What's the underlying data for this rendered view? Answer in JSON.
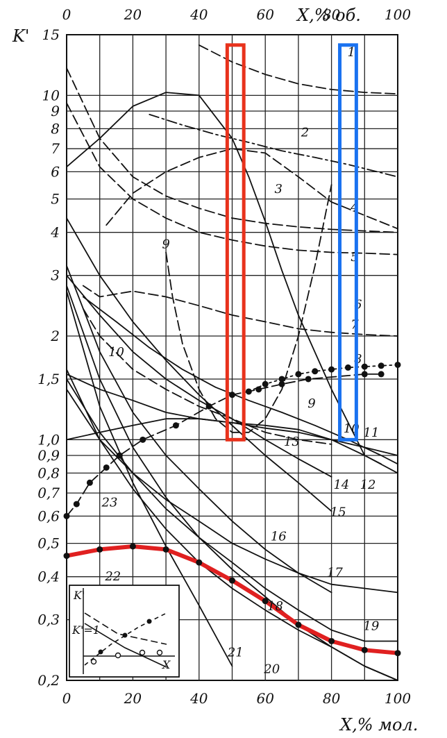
{
  "chart_data": {
    "type": "line",
    "y_axis_label": "K'",
    "x_bottom_label": "X,% мол.",
    "x_top_label": "X,% об.",
    "y_scale": "log",
    "ylim": [
      0.2,
      15
    ],
    "xlim": [
      0,
      100
    ],
    "grid": true,
    "x_bottom_ticks": [
      "0",
      "20",
      "40",
      "60",
      "80",
      "100"
    ],
    "x_top_ticks": [
      "0",
      "20",
      "40",
      "60",
      "80",
      "100"
    ],
    "y_ticks": [
      {
        "value": 15,
        "label": "15"
      },
      {
        "value": 10,
        "label": "10"
      },
      {
        "value": 9,
        "label": "9"
      },
      {
        "value": 8,
        "label": "8"
      },
      {
        "value": 7,
        "label": "7"
      },
      {
        "value": 6,
        "label": "6"
      },
      {
        "value": 5,
        "label": "5"
      },
      {
        "value": 4,
        "label": "4"
      },
      {
        "value": 3,
        "label": "3"
      },
      {
        "value": 2,
        "label": "2"
      },
      {
        "value": 1.5,
        "label": "1,5"
      },
      {
        "value": 1.0,
        "label": "1,0"
      },
      {
        "value": 0.9,
        "label": "0,9"
      },
      {
        "value": 0.8,
        "label": "0,8"
      },
      {
        "value": 0.7,
        "label": "0,7"
      },
      {
        "value": 0.6,
        "label": "0,6"
      },
      {
        "value": 0.5,
        "label": "0,5"
      },
      {
        "value": 0.4,
        "label": "0,4"
      },
      {
        "value": 0.3,
        "label": "0,3"
      },
      {
        "value": 0.2,
        "label": "0,2"
      }
    ],
    "series": [
      {
        "name": "1",
        "style": "dash",
        "x": [
          40,
          50,
          60,
          70,
          80,
          90,
          100
        ],
        "y": [
          14,
          12.5,
          11.5,
          10.8,
          10.4,
          10.2,
          10.1
        ]
      },
      {
        "name": "2",
        "style": "dashdot",
        "x": [
          25,
          35,
          45,
          55,
          65,
          75,
          85,
          100
        ],
        "y": [
          8.8,
          8.2,
          7.7,
          7.3,
          6.9,
          6.6,
          6.3,
          5.8
        ]
      },
      {
        "name": "3",
        "style": "dash",
        "x": [
          12,
          20,
          30,
          40,
          50,
          60,
          70,
          80,
          100
        ],
        "y": [
          4.2,
          5.2,
          6.0,
          6.6,
          7.0,
          6.8,
          5.8,
          4.9,
          4.1
        ]
      },
      {
        "name": "4",
        "style": "dash",
        "x": [
          0,
          10,
          20,
          30,
          40,
          50,
          60,
          70,
          80,
          90,
          100
        ],
        "y": [
          12,
          7.5,
          5.8,
          5.1,
          4.7,
          4.4,
          4.25,
          4.15,
          4.08,
          4.04,
          4.0
        ]
      },
      {
        "name": "5",
        "style": "dash",
        "x": [
          0,
          10,
          20,
          30,
          40,
          50,
          60,
          70,
          80,
          90,
          100
        ],
        "y": [
          9.5,
          6.2,
          5.0,
          4.4,
          4.0,
          3.8,
          3.65,
          3.55,
          3.5,
          3.48,
          3.45
        ]
      },
      {
        "name": "6",
        "style": "dash",
        "x": [
          5,
          10,
          20,
          30,
          40,
          50,
          60,
          70,
          80,
          90,
          100
        ],
        "y": [
          2.8,
          2.6,
          2.7,
          2.6,
          2.45,
          2.3,
          2.2,
          2.1,
          2.05,
          2.02,
          2.0
        ]
      },
      {
        "name": "7",
        "style": "solid",
        "x": [
          0,
          10,
          20,
          30,
          40,
          50,
          55,
          60,
          65,
          70,
          80,
          90,
          100
        ],
        "y": [
          6.2,
          7.5,
          9.3,
          10.2,
          10.0,
          7.5,
          5.8,
          4.3,
          3.1,
          2.3,
          1.4,
          0.9,
          0.8
        ]
      },
      {
        "name": "8",
        "style": "dot",
        "x": [
          55,
          60,
          65,
          70,
          75,
          80,
          85,
          90,
          95,
          100
        ],
        "y": [
          1.38,
          1.45,
          1.5,
          1.55,
          1.58,
          1.6,
          1.62,
          1.63,
          1.64,
          1.65
        ]
      },
      {
        "name": "9",
        "style": "dash",
        "x": [
          30,
          32,
          35,
          40,
          45,
          50,
          55,
          60,
          65,
          70,
          75,
          80
        ],
        "y": [
          3.5,
          2.6,
          1.9,
          1.4,
          1.15,
          1.05,
          1.05,
          1.15,
          1.4,
          2.0,
          3.2,
          5.5
        ]
      },
      {
        "name": "10",
        "style": "dash",
        "x": [
          5,
          10,
          20,
          30,
          40,
          50,
          60,
          70,
          80
        ],
        "y": [
          2.4,
          2.0,
          1.6,
          1.4,
          1.25,
          1.15,
          1.05,
          1.0,
          0.97
        ]
      },
      {
        "name": "11",
        "style": "solid",
        "x": [
          0,
          10,
          20,
          30,
          40,
          50,
          60,
          70,
          80,
          90,
          95
        ],
        "y": [
          1.55,
          1.4,
          1.3,
          1.2,
          1.15,
          1.12,
          1.1,
          1.07,
          1.0,
          0.9,
          0.85
        ]
      },
      {
        "name": "12",
        "style": "solid",
        "x": [
          5,
          15,
          25,
          35,
          45,
          55,
          65,
          75,
          85,
          95,
          100
        ],
        "y": [
          2.6,
          2.2,
          1.85,
          1.6,
          1.42,
          1.3,
          1.2,
          1.1,
          1.0,
          0.9,
          0.85
        ]
      },
      {
        "name": "13",
        "style": "solid",
        "x": [
          0,
          10,
          20,
          30,
          40,
          50,
          60,
          70,
          80,
          90,
          100
        ],
        "y": [
          1.0,
          1.05,
          1.1,
          1.15,
          1.15,
          1.12,
          1.08,
          1.05,
          1.0,
          0.95,
          0.9
        ]
      },
      {
        "name": "14",
        "style": "solid",
        "x": [
          0,
          10,
          20,
          30,
          40,
          50,
          60,
          70,
          80
        ],
        "y": [
          3.0,
          2.3,
          1.8,
          1.5,
          1.3,
          1.15,
          1.0,
          0.88,
          0.78
        ]
      },
      {
        "name": "15",
        "style": "solid",
        "x": [
          0,
          10,
          20,
          30,
          40,
          50,
          60,
          70,
          80
        ],
        "y": [
          4.4,
          3.0,
          2.2,
          1.7,
          1.35,
          1.1,
          0.9,
          0.75,
          0.62
        ]
      },
      {
        "name": "16",
        "style": "solid",
        "x": [
          0,
          10,
          20,
          30,
          40,
          50,
          60,
          70,
          80,
          90,
          100
        ],
        "y": [
          1.4,
          1.0,
          0.8,
          0.67,
          0.58,
          0.5,
          0.45,
          0.41,
          0.38,
          0.37,
          0.36
        ]
      },
      {
        "name": "17",
        "style": "solid",
        "x": [
          0,
          10,
          20,
          30,
          40,
          50,
          60,
          70,
          80
        ],
        "y": [
          3.2,
          1.8,
          1.2,
          0.9,
          0.72,
          0.58,
          0.48,
          0.41,
          0.36
        ]
      },
      {
        "name": "18",
        "style": "solid",
        "x": [
          0,
          10,
          20,
          30,
          40,
          50,
          60,
          70,
          80,
          90,
          100
        ],
        "y": [
          1.5,
          1.05,
          0.8,
          0.63,
          0.52,
          0.44,
          0.37,
          0.32,
          0.28,
          0.26,
          0.26
        ]
      },
      {
        "name": "19",
        "style": "solid",
        "x": [
          0,
          10,
          20,
          30,
          40,
          50,
          60,
          70,
          80,
          90,
          100
        ],
        "y": [
          1.6,
          1.0,
          0.72,
          0.55,
          0.44,
          0.37,
          0.32,
          0.28,
          0.25,
          0.22,
          0.2
        ]
      },
      {
        "name": "20",
        "style": "solid",
        "x": [
          0,
          10,
          20,
          30,
          40,
          50,
          60,
          70,
          80,
          90,
          100
        ],
        "y": [
          2.8,
          1.5,
          0.95,
          0.68,
          0.52,
          0.42,
          0.35,
          0.29,
          0.25,
          0.22,
          0.2
        ]
      },
      {
        "name": "21",
        "style": "solid",
        "x": [
          0,
          10,
          20,
          30,
          40,
          50
        ],
        "y": [
          2.7,
          1.25,
          0.75,
          0.49,
          0.33,
          0.22
        ]
      },
      {
        "name": "22",
        "style": "solid",
        "color": "#e02020",
        "markers": true,
        "x": [
          0,
          10,
          20,
          30,
          40,
          50,
          60,
          70,
          80,
          90,
          100
        ],
        "y": [
          0.46,
          0.48,
          0.49,
          0.48,
          0.44,
          0.39,
          0.34,
          0.29,
          0.26,
          0.245,
          0.24
        ]
      },
      {
        "name": "23",
        "style": "dash",
        "markers": true,
        "x": [
          0,
          3,
          7,
          12,
          16,
          23,
          33,
          43,
          50,
          58,
          65,
          73,
          90,
          95
        ],
        "y": [
          0.6,
          0.65,
          0.75,
          0.83,
          0.9,
          1.0,
          1.1,
          1.25,
          1.35,
          1.4,
          1.45,
          1.5,
          1.55,
          1.55
        ]
      }
    ],
    "labels": [
      {
        "text": "1",
        "x": 86,
        "y": 13
      },
      {
        "text": "2",
        "x": 72,
        "y": 7.6
      },
      {
        "text": "3",
        "x": 64,
        "y": 5.2
      },
      {
        "text": "4",
        "x": 87,
        "y": 4.6
      },
      {
        "text": "5",
        "x": 87,
        "y": 3.3
      },
      {
        "text": "6",
        "x": 88,
        "y": 2.4
      },
      {
        "text": "7",
        "x": 87,
        "y": 2.1
      },
      {
        "text": "8",
        "x": 88,
        "y": 1.67
      },
      {
        "text": "9",
        "x": 30,
        "y": 3.6
      },
      {
        "text": "9",
        "x": 74,
        "y": 1.24
      },
      {
        "text": "10",
        "x": 15,
        "y": 1.75
      },
      {
        "text": "10",
        "x": 86,
        "y": 1.05
      },
      {
        "text": "11",
        "x": 92,
        "y": 1.02
      },
      {
        "text": "12",
        "x": 91,
        "y": 0.72
      },
      {
        "text": "13",
        "x": 68,
        "y": 0.96
      },
      {
        "text": "14",
        "x": 83,
        "y": 0.72
      },
      {
        "text": "15",
        "x": 82,
        "y": 0.6
      },
      {
        "text": "16",
        "x": 64,
        "y": 0.51
      },
      {
        "text": "17",
        "x": 81,
        "y": 0.4
      },
      {
        "text": "18",
        "x": 63,
        "y": 0.32
      },
      {
        "text": "19",
        "x": 92,
        "y": 0.28
      },
      {
        "text": "20",
        "x": 62,
        "y": 0.21
      },
      {
        "text": "21",
        "x": 51,
        "y": 0.235
      },
      {
        "text": "22",
        "x": 14,
        "y": 0.39
      },
      {
        "text": "23",
        "x": 13,
        "y": 0.64
      }
    ],
    "highlights": [
      {
        "color": "#e8321c",
        "x_range": [
          48.5,
          53.5
        ],
        "y_range": [
          1.0,
          14
        ]
      },
      {
        "color": "#1a72f0",
        "x_range": [
          82.5,
          87.5
        ],
        "y_range": [
          1.0,
          14
        ]
      }
    ],
    "inset": {
      "y_label": "K'",
      "ref_label": "K'=1",
      "x_label": "X"
    }
  }
}
